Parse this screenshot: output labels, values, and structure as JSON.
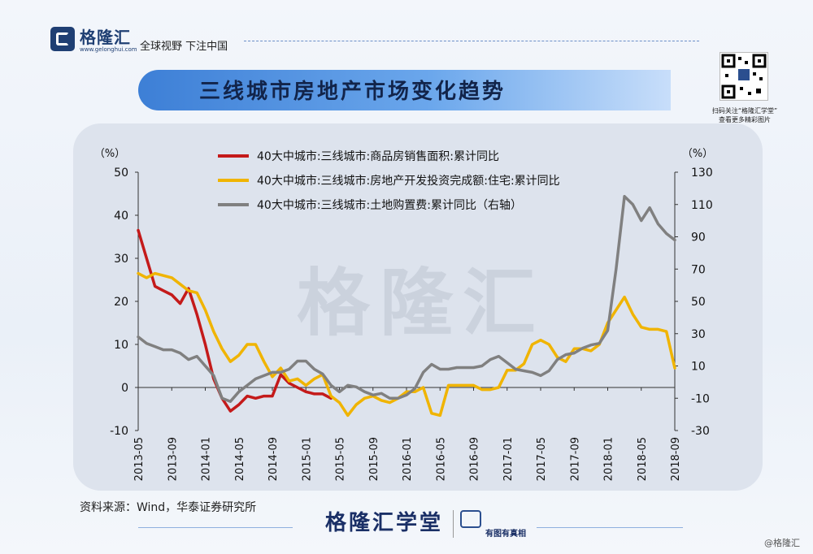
{
  "header": {
    "logo_text": "格隆汇",
    "logo_url": "www.gelonghui.com",
    "slogan": "全球视野 下注中国",
    "title": "三线城市房地产市场变化趋势"
  },
  "qr_caption": [
    "扫码关注“格隆汇学堂”",
    "查看更多精彩图片"
  ],
  "watermark": "格隆汇",
  "footer": {
    "source": "资料来源：Wind，华泰证券研究所",
    "brand": "格隆汇学堂",
    "tagline": "有图有真相",
    "copyright": "@格隆汇"
  },
  "colors": {
    "sales": "#c41a1a",
    "investment": "#f0b400",
    "land": "#808080",
    "banner": "#3d7fd6",
    "panel": "#dde3ed"
  },
  "chart_data": {
    "type": "line",
    "title": "",
    "left_axis": {
      "label": "（%）",
      "range": [
        -10,
        50
      ],
      "ticks": [
        -10,
        0,
        10,
        20,
        30,
        40,
        50
      ]
    },
    "right_axis": {
      "label": "（%）",
      "range": [
        -30,
        130
      ],
      "ticks": [
        -30,
        -10,
        10,
        30,
        50,
        70,
        90,
        110,
        130
      ]
    },
    "x_ticks": [
      "2013-05",
      "2013-09",
      "2014-01",
      "2014-05",
      "2014-09",
      "2015-01",
      "2015-05",
      "2015-09",
      "2016-01",
      "2016-05",
      "2016-09",
      "2017-01",
      "2017-05",
      "2017-09",
      "2018-01",
      "2018-05",
      "2018-09"
    ],
    "x_range": [
      "2013-05",
      "2018-09"
    ],
    "legend": {
      "position": "top-center"
    },
    "series": [
      {
        "name": "40大中城市:三线城市:商品房销售面积:累计同比",
        "axis": "left",
        "x": [
          "2013-05",
          "2013-06",
          "2013-07",
          "2013-08",
          "2013-09",
          "2013-10",
          "2013-11",
          "2013-12",
          "2014-01",
          "2014-02",
          "2014-03",
          "2014-04",
          "2014-05",
          "2014-06",
          "2014-07",
          "2014-08",
          "2014-09",
          "2014-10",
          "2014-11",
          "2014-12",
          "2015-01",
          "2015-02",
          "2015-03",
          "2015-04"
        ],
        "values": [
          36.5,
          30,
          23.5,
          22.5,
          21.5,
          19.5,
          23,
          17,
          10,
          2,
          -2.5,
          -5.5,
          -4,
          -2,
          -2.5,
          -2,
          -2,
          3,
          1,
          0,
          -1,
          -1.5,
          -1.5,
          -2.5
        ]
      },
      {
        "name": "40大中城市:三线城市:房地产开发投资完成额:住宅:累计同比",
        "axis": "left",
        "x": [
          "2013-05",
          "2013-06",
          "2013-07",
          "2013-08",
          "2013-09",
          "2013-10",
          "2013-11",
          "2013-12",
          "2014-01",
          "2014-02",
          "2014-03",
          "2014-04",
          "2014-05",
          "2014-06",
          "2014-07",
          "2014-08",
          "2014-09",
          "2014-10",
          "2014-11",
          "2014-12",
          "2015-01",
          "2015-02",
          "2015-03",
          "2015-04",
          "2015-05",
          "2015-06",
          "2015-07",
          "2015-08",
          "2015-09",
          "2015-10",
          "2015-11",
          "2015-12",
          "2016-01",
          "2016-02",
          "2016-03",
          "2016-04",
          "2016-05",
          "2016-06",
          "2016-07",
          "2016-08",
          "2016-09",
          "2016-10",
          "2016-11",
          "2016-12",
          "2017-01",
          "2017-02",
          "2017-03",
          "2017-04",
          "2017-05",
          "2017-06",
          "2017-07",
          "2017-08",
          "2017-09",
          "2017-10",
          "2017-11",
          "2017-12",
          "2018-01",
          "2018-02",
          "2018-03",
          "2018-04",
          "2018-05",
          "2018-06",
          "2018-07",
          "2018-08",
          "2018-09"
        ],
        "values": [
          26.5,
          25.5,
          26.5,
          26,
          25.5,
          24,
          22.5,
          22,
          18,
          13,
          9,
          6,
          7.5,
          10,
          10,
          6,
          2.5,
          4.5,
          1.5,
          2,
          0.5,
          2,
          3,
          -2,
          -3.5,
          -6.5,
          -4,
          -2.5,
          -2,
          -3,
          -3.5,
          -2.5,
          -1,
          -1,
          0,
          -6,
          -6.5,
          0.5,
          0.5,
          0.5,
          0.5,
          -0.5,
          -0.5,
          0,
          4,
          4,
          5.5,
          10,
          11,
          10,
          7,
          6,
          9,
          9,
          8.5,
          10,
          15,
          18,
          21,
          17,
          14,
          13.5,
          13.5,
          13,
          4.5
        ]
      },
      {
        "name": "40大中城市:三线城市:土地购置费:累计同比（右轴）",
        "axis": "right",
        "x": [
          "2013-05",
          "2013-06",
          "2013-07",
          "2013-08",
          "2013-09",
          "2013-10",
          "2013-11",
          "2013-12",
          "2014-01",
          "2014-02",
          "2014-03",
          "2014-04",
          "2014-05",
          "2014-06",
          "2014-07",
          "2014-08",
          "2014-09",
          "2014-10",
          "2014-11",
          "2014-12",
          "2015-01",
          "2015-02",
          "2015-03",
          "2015-04",
          "2015-05",
          "2015-06",
          "2015-07",
          "2015-08",
          "2015-09",
          "2015-10",
          "2015-11",
          "2015-12",
          "2016-01",
          "2016-02",
          "2016-03",
          "2016-04",
          "2016-05",
          "2016-06",
          "2016-07",
          "2016-08",
          "2016-09",
          "2016-10",
          "2016-11",
          "2016-12",
          "2017-01",
          "2017-02",
          "2017-03",
          "2017-04",
          "2017-05",
          "2017-06",
          "2017-07",
          "2017-08",
          "2017-09",
          "2017-10",
          "2017-11",
          "2017-12",
          "2018-01",
          "2018-02",
          "2018-03",
          "2018-04",
          "2018-05",
          "2018-06",
          "2018-07",
          "2018-08",
          "2018-09"
        ],
        "values": [
          28,
          24,
          22,
          20,
          20,
          18,
          14,
          16,
          10,
          4,
          -10,
          -12,
          -6,
          -2,
          2,
          4,
          6,
          6,
          8,
          13,
          13,
          8,
          5,
          -2,
          -6,
          -2,
          -3,
          -6,
          -8,
          -7,
          -10,
          -10,
          -8,
          -4,
          6,
          11,
          8,
          8,
          9,
          9,
          9,
          10,
          14,
          16,
          12,
          8,
          7,
          6,
          4,
          7,
          14,
          17,
          18,
          21,
          23,
          24,
          32,
          70,
          115,
          110,
          100,
          108,
          98,
          92,
          88
        ]
      }
    ]
  }
}
